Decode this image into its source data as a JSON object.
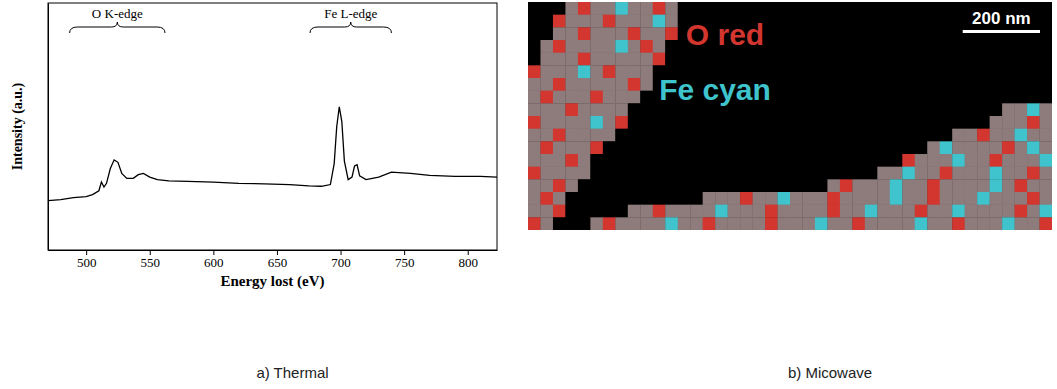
{
  "chart_data": [
    {
      "type": "line",
      "caption": "a) Thermal",
      "x_label": "Energy lost (eV)",
      "y_label": "Intensity (a.u.)",
      "x": [
        470,
        480,
        490,
        500,
        505,
        510,
        512,
        514,
        516,
        519,
        522,
        525,
        528,
        532,
        537,
        541,
        545,
        550,
        556,
        565,
        580,
        600,
        620,
        640,
        660,
        675,
        685,
        692,
        695,
        697,
        699,
        701,
        703,
        706,
        709,
        711,
        713,
        715,
        720,
        730,
        740,
        755,
        770,
        790,
        810,
        823
      ],
      "values": [
        20.0,
        20.4,
        21.2,
        21.6,
        22.4,
        24.0,
        27.5,
        25.5,
        27.0,
        33.0,
        36.5,
        35.5,
        31.0,
        29.0,
        29.0,
        30.5,
        31.0,
        29.5,
        28.5,
        28.0,
        27.8,
        27.5,
        27.0,
        26.8,
        26.5,
        26.0,
        25.8,
        26.5,
        35.0,
        50.0,
        58.0,
        52.0,
        36.0,
        28.5,
        29.5,
        34.0,
        34.5,
        30.0,
        28.5,
        29.5,
        31.5,
        31.0,
        30.2,
        29.8,
        29.8,
        29.5
      ],
      "color": "#000000",
      "xlim": [
        470,
        823
      ],
      "xticks": [
        500,
        550,
        600,
        650,
        700,
        750,
        800
      ],
      "ylim": [
        0,
        100
      ],
      "tick_labels": "x",
      "annotations": [
        {
          "text": "O K-edge",
          "x": [
            487,
            562
          ]
        },
        {
          "text": "Fe L-edge",
          "x": [
            676,
            740
          ]
        }
      ]
    },
    {
      "type": "heatmap",
      "caption": "b) Micowave",
      "xlim": [
        0,
        1356
      ],
      "ylim": [
        0,
        590
      ],
      "tick_labels": false,
      "colors": [
        "#000000",
        "#8e7b7b",
        "#d2362f",
        "#3fc3cc"
      ],
      "elements": [
        {
          "name": "O red",
          "cell_value": 2
        },
        {
          "name": "Fe cyan",
          "cell_value": 3
        }
      ],
      "scale_bar": {
        "value": 200,
        "label": "200 nm"
      },
      "cells": [
        [
          0,
          0,
          0,
          1,
          2,
          1,
          1,
          3,
          1,
          1,
          2,
          1,
          0,
          0,
          0,
          0,
          0,
          0,
          0,
          0,
          0,
          0,
          0,
          0,
          0,
          0,
          0,
          0,
          0,
          0,
          0,
          0,
          0,
          0,
          0,
          0,
          0,
          0,
          0,
          0,
          0,
          0
        ],
        [
          0,
          0,
          2,
          1,
          1,
          1,
          2,
          1,
          1,
          1,
          3,
          1,
          0,
          0,
          0,
          0,
          0,
          0,
          0,
          0,
          0,
          0,
          0,
          0,
          0,
          0,
          0,
          0,
          0,
          0,
          0,
          0,
          0,
          0,
          0,
          0,
          0,
          0,
          0,
          0,
          0,
          0
        ],
        [
          0,
          0,
          1,
          1,
          2,
          1,
          1,
          1,
          2,
          1,
          1,
          2,
          0,
          0,
          0,
          0,
          0,
          0,
          0,
          0,
          0,
          0,
          0,
          0,
          0,
          0,
          0,
          0,
          0,
          0,
          0,
          0,
          0,
          0,
          0,
          0,
          0,
          0,
          0,
          0,
          0,
          0
        ],
        [
          0,
          1,
          2,
          1,
          1,
          1,
          1,
          3,
          1,
          2,
          1,
          0,
          0,
          0,
          0,
          0,
          0,
          0,
          0,
          0,
          0,
          0,
          0,
          0,
          0,
          0,
          0,
          0,
          0,
          0,
          0,
          0,
          0,
          0,
          0,
          0,
          0,
          0,
          0,
          0,
          0,
          0
        ],
        [
          0,
          1,
          1,
          1,
          2,
          1,
          1,
          1,
          1,
          1,
          2,
          0,
          0,
          0,
          0,
          0,
          0,
          0,
          0,
          0,
          0,
          0,
          0,
          0,
          0,
          0,
          0,
          0,
          0,
          0,
          0,
          0,
          0,
          0,
          0,
          0,
          0,
          0,
          0,
          0,
          0,
          0
        ],
        [
          2,
          1,
          1,
          1,
          3,
          1,
          2,
          1,
          1,
          1,
          0,
          0,
          0,
          0,
          0,
          0,
          0,
          0,
          0,
          0,
          0,
          0,
          0,
          0,
          0,
          0,
          0,
          0,
          0,
          0,
          0,
          0,
          0,
          0,
          0,
          0,
          0,
          0,
          0,
          0,
          0,
          0
        ],
        [
          1,
          1,
          2,
          1,
          1,
          1,
          1,
          1,
          2,
          1,
          0,
          0,
          0,
          0,
          0,
          0,
          0,
          0,
          0,
          0,
          0,
          0,
          0,
          0,
          0,
          0,
          0,
          0,
          0,
          0,
          0,
          0,
          0,
          0,
          0,
          0,
          0,
          0,
          0,
          0,
          0,
          0
        ],
        [
          1,
          2,
          1,
          1,
          1,
          2,
          1,
          1,
          1,
          0,
          0,
          0,
          0,
          0,
          0,
          0,
          0,
          0,
          0,
          0,
          0,
          0,
          0,
          0,
          0,
          0,
          0,
          0,
          0,
          0,
          0,
          0,
          0,
          0,
          0,
          0,
          0,
          0,
          0,
          0,
          0,
          0
        ],
        [
          1,
          1,
          1,
          2,
          1,
          1,
          1,
          1,
          0,
          0,
          0,
          0,
          0,
          0,
          0,
          0,
          0,
          0,
          0,
          0,
          0,
          0,
          0,
          0,
          0,
          0,
          0,
          0,
          0,
          0,
          0,
          0,
          0,
          0,
          0,
          0,
          0,
          0,
          1,
          1,
          3,
          1
        ],
        [
          2,
          1,
          1,
          1,
          1,
          3,
          1,
          2,
          0,
          0,
          0,
          0,
          0,
          0,
          0,
          0,
          0,
          0,
          0,
          0,
          0,
          0,
          0,
          0,
          0,
          0,
          0,
          0,
          0,
          0,
          0,
          0,
          0,
          0,
          0,
          0,
          0,
          1,
          1,
          1,
          2,
          1
        ],
        [
          1,
          1,
          2,
          1,
          1,
          1,
          1,
          0,
          0,
          0,
          0,
          0,
          0,
          0,
          0,
          0,
          0,
          0,
          0,
          0,
          0,
          0,
          0,
          0,
          0,
          0,
          0,
          0,
          0,
          0,
          0,
          0,
          0,
          0,
          1,
          1,
          2,
          1,
          1,
          3,
          1,
          1
        ],
        [
          1,
          2,
          1,
          1,
          1,
          2,
          0,
          0,
          0,
          0,
          0,
          0,
          0,
          0,
          0,
          0,
          0,
          0,
          0,
          0,
          0,
          0,
          0,
          0,
          0,
          0,
          0,
          0,
          0,
          0,
          0,
          0,
          1,
          3,
          1,
          1,
          1,
          1,
          2,
          1,
          3,
          1
        ],
        [
          1,
          1,
          1,
          2,
          1,
          0,
          0,
          0,
          0,
          0,
          0,
          0,
          0,
          0,
          0,
          0,
          0,
          0,
          0,
          0,
          0,
          0,
          0,
          0,
          0,
          0,
          0,
          0,
          0,
          0,
          2,
          1,
          1,
          1,
          3,
          1,
          1,
          2,
          1,
          1,
          1,
          3
        ],
        [
          2,
          1,
          1,
          1,
          1,
          0,
          0,
          0,
          0,
          0,
          0,
          0,
          0,
          0,
          0,
          0,
          0,
          0,
          0,
          0,
          0,
          0,
          0,
          0,
          0,
          0,
          0,
          0,
          1,
          1,
          3,
          1,
          1,
          2,
          1,
          1,
          1,
          3,
          1,
          1,
          2,
          1
        ],
        [
          1,
          1,
          2,
          1,
          0,
          0,
          0,
          0,
          0,
          0,
          0,
          0,
          0,
          0,
          0,
          0,
          0,
          0,
          0,
          0,
          0,
          0,
          0,
          0,
          1,
          2,
          1,
          1,
          1,
          3,
          1,
          1,
          2,
          1,
          1,
          1,
          1,
          3,
          1,
          2,
          1,
          1
        ],
        [
          1,
          2,
          1,
          0,
          0,
          0,
          0,
          0,
          0,
          0,
          0,
          0,
          0,
          0,
          1,
          1,
          1,
          2,
          1,
          1,
          3,
          1,
          1,
          1,
          2,
          1,
          1,
          1,
          1,
          3,
          1,
          1,
          2,
          1,
          1,
          1,
          3,
          1,
          1,
          1,
          2,
          1
        ],
        [
          1,
          1,
          2,
          0,
          0,
          0,
          0,
          0,
          1,
          1,
          2,
          1,
          1,
          1,
          1,
          3,
          1,
          1,
          1,
          2,
          1,
          1,
          1,
          1,
          2,
          1,
          1,
          3,
          1,
          1,
          1,
          2,
          1,
          1,
          3,
          1,
          1,
          1,
          1,
          2,
          1,
          3
        ],
        [
          2,
          1,
          0,
          0,
          0,
          1,
          2,
          1,
          1,
          1,
          1,
          3,
          1,
          1,
          2,
          1,
          1,
          1,
          1,
          2,
          1,
          1,
          1,
          3,
          1,
          1,
          2,
          1,
          1,
          1,
          1,
          3,
          1,
          1,
          2,
          1,
          1,
          1,
          3,
          1,
          1,
          2
        ]
      ]
    }
  ]
}
